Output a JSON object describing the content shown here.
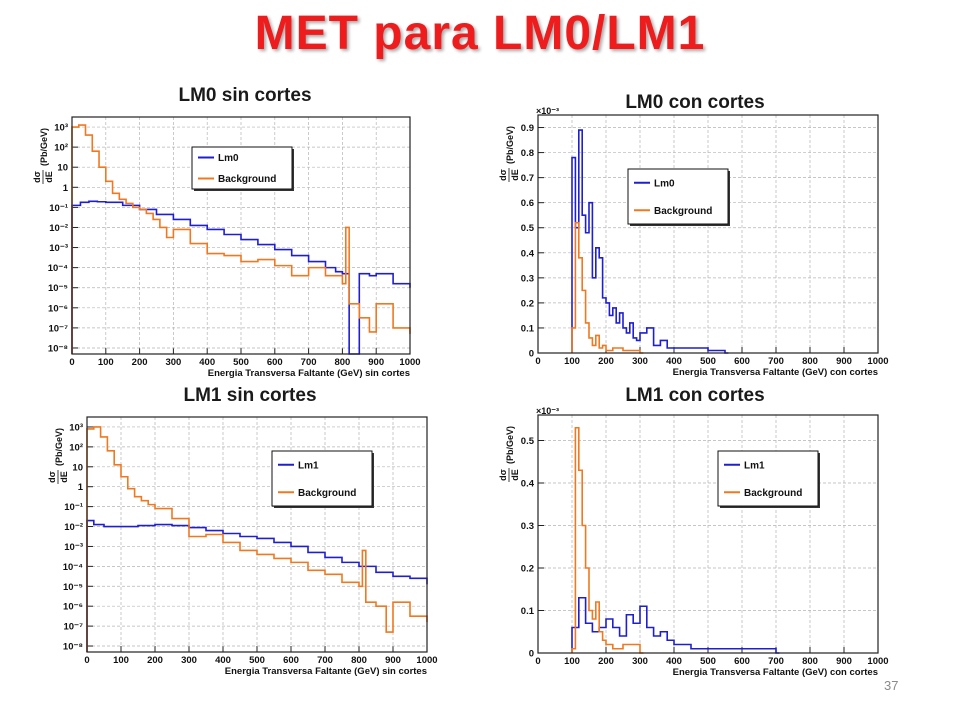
{
  "slide": {
    "title": "MET para LM0/LM1",
    "page_number": "37"
  },
  "panels": [
    {
      "caption": "LM0 sin cortes"
    },
    {
      "caption": "LM0 con cortes"
    },
    {
      "caption": "LM1 sin cortes"
    },
    {
      "caption": "LM1 con cortes"
    }
  ],
  "colors": {
    "signal": "#1f1fd0",
    "background": "#f07820",
    "grid": "#b4b4b4",
    "frame": "#222222"
  },
  "chart_data": [
    {
      "type": "line",
      "subtype": "histogram",
      "scale": "log",
      "xlabel": "Energia Transversa Faltante (GeV) sin cortes",
      "ylabel_line1": "dσ",
      "ylabel_line2": "dE",
      "ylabel_unit": "(Pb/GeV)",
      "x_ticks": [
        "0",
        "100",
        "200",
        "300",
        "400",
        "500",
        "600",
        "700",
        "800",
        "900",
        "1000"
      ],
      "y_ticks": [
        "10⁻⁸",
        "10⁻⁷",
        "10⁻⁶",
        "10⁻⁵",
        "10⁻⁴",
        "10⁻³",
        "10⁻²",
        "10⁻¹",
        "1",
        "10",
        "10²",
        "10³"
      ],
      "xlim": [
        0,
        1000
      ],
      "ylim": [
        -8.3,
        3.5
      ],
      "legend_position": "top-right",
      "grid": true,
      "series": [
        {
          "name": "Lm0",
          "role": "signal",
          "x": [
            0,
            25,
            50,
            75,
            100,
            150,
            200,
            250,
            300,
            350,
            400,
            450,
            500,
            550,
            600,
            650,
            700,
            750,
            780,
            800,
            820,
            850,
            880,
            900,
            950,
            1000
          ],
          "y_log10": [
            -0.9,
            -0.75,
            -0.7,
            -0.72,
            -0.75,
            -0.9,
            -1.1,
            -1.35,
            -1.6,
            -1.9,
            -2.1,
            -2.35,
            -2.6,
            -2.85,
            -3.1,
            -3.4,
            -3.7,
            -4.0,
            -4.2,
            -4.3,
            -8.3,
            -4.3,
            -4.4,
            -4.3,
            -4.8,
            -5.0
          ]
        },
        {
          "name": "Background",
          "role": "background",
          "x": [
            0,
            20,
            40,
            60,
            80,
            100,
            120,
            140,
            160,
            180,
            200,
            220,
            240,
            260,
            280,
            300,
            350,
            400,
            450,
            500,
            550,
            600,
            650,
            700,
            750,
            800,
            810,
            820,
            850,
            880,
            900,
            950,
            1000
          ],
          "y_log10": [
            3.0,
            3.1,
            2.6,
            1.8,
            1.0,
            0.3,
            -0.3,
            -0.6,
            -0.8,
            -1.0,
            -1.1,
            -1.3,
            -1.6,
            -2.0,
            -2.5,
            -2.1,
            -2.8,
            -3.3,
            -3.4,
            -3.7,
            -3.6,
            -3.9,
            -4.4,
            -4.0,
            -4.4,
            -4.8,
            -2.0,
            -5.8,
            -6.5,
            -7.2,
            -5.8,
            -7.0,
            -7.3
          ]
        }
      ]
    },
    {
      "type": "line",
      "subtype": "histogram",
      "scale": "linear",
      "multiplier": "×10⁻³",
      "xlabel": "Energia Transversa Faltante (GeV) con cortes",
      "ylabel_line1": "dσ",
      "ylabel_line2": "dE",
      "ylabel_unit": "(Pb/GeV)",
      "x_ticks": [
        "0",
        "100",
        "200",
        "300",
        "400",
        "500",
        "600",
        "700",
        "800",
        "900",
        "1000"
      ],
      "y_ticks": [
        "0",
        "0.1",
        "0.2",
        "0.3",
        "0.4",
        "0.5",
        "0.6",
        "0.7",
        "0.8",
        "0.9"
      ],
      "xlim": [
        0,
        1000
      ],
      "ylim": [
        0,
        0.95
      ],
      "legend_position": "top-right",
      "grid": true,
      "series": [
        {
          "name": "Lm0",
          "role": "signal",
          "x": [
            100,
            110,
            120,
            130,
            140,
            150,
            160,
            170,
            180,
            190,
            200,
            210,
            220,
            230,
            240,
            250,
            260,
            270,
            280,
            290,
            300,
            320,
            340,
            360,
            380,
            400,
            450,
            500,
            550
          ],
          "y": [
            0.78,
            0.5,
            0.89,
            0.55,
            0.48,
            0.6,
            0.3,
            0.42,
            0.38,
            0.22,
            0.2,
            0.15,
            0.18,
            0.12,
            0.16,
            0.1,
            0.08,
            0.12,
            0.06,
            0.05,
            0.08,
            0.1,
            0.03,
            0.05,
            0.02,
            0.02,
            0.02,
            0.01,
            0
          ]
        },
        {
          "name": "Background",
          "role": "background",
          "x": [
            100,
            110,
            120,
            130,
            140,
            150,
            160,
            170,
            180,
            190,
            200,
            220,
            250,
            300
          ],
          "y": [
            0.1,
            0.52,
            0.38,
            0.25,
            0.12,
            0.06,
            0.03,
            0.07,
            0.02,
            0.03,
            0.01,
            0.02,
            0.01,
            0
          ]
        }
      ]
    },
    {
      "type": "line",
      "subtype": "histogram",
      "scale": "log",
      "xlabel": "Energia Transversa Faltante (GeV) sin cortes",
      "ylabel_line1": "dσ",
      "ylabel_line2": "dE",
      "ylabel_unit": "(Pb/GeV)",
      "x_ticks": [
        "0",
        "100",
        "200",
        "300",
        "400",
        "500",
        "600",
        "700",
        "800",
        "900",
        "1000"
      ],
      "y_ticks": [
        "10⁻⁸",
        "10⁻⁷",
        "10⁻⁶",
        "10⁻⁵",
        "10⁻⁴",
        "10⁻³",
        "10⁻²",
        "10⁻¹",
        "1",
        "10",
        "10²",
        "10³"
      ],
      "xlim": [
        0,
        1000
      ],
      "ylim": [
        -8.3,
        3.5
      ],
      "legend_position": "top-right",
      "grid": true,
      "series": [
        {
          "name": "Lm1",
          "role": "signal",
          "x": [
            0,
            20,
            50,
            100,
            150,
            200,
            250,
            300,
            350,
            400,
            450,
            500,
            550,
            600,
            650,
            700,
            750,
            800,
            850,
            900,
            950,
            1000
          ],
          "y_log10": [
            -1.7,
            -1.9,
            -2.0,
            -2.0,
            -1.95,
            -1.9,
            -1.95,
            -2.05,
            -2.2,
            -2.35,
            -2.5,
            -2.6,
            -2.8,
            -3.0,
            -3.3,
            -3.55,
            -3.8,
            -4.0,
            -4.3,
            -4.5,
            -4.6,
            -4.9
          ]
        },
        {
          "name": "Background",
          "role": "background",
          "x": [
            0,
            20,
            40,
            60,
            80,
            100,
            120,
            140,
            160,
            180,
            200,
            250,
            300,
            350,
            400,
            450,
            500,
            550,
            600,
            650,
            700,
            750,
            800,
            810,
            820,
            850,
            880,
            900,
            950,
            1000
          ],
          "y_log10": [
            2.9,
            3.0,
            2.5,
            1.8,
            1.1,
            0.5,
            -0.1,
            -0.5,
            -0.7,
            -0.9,
            -1.1,
            -1.6,
            -2.5,
            -2.4,
            -2.8,
            -3.2,
            -3.4,
            -3.6,
            -3.8,
            -4.2,
            -4.4,
            -4.8,
            -5.0,
            -3.2,
            -5.8,
            -6.0,
            -7.3,
            -5.8,
            -6.5,
            -6.8
          ]
        }
      ]
    },
    {
      "type": "line",
      "subtype": "histogram",
      "scale": "linear",
      "multiplier": "×10⁻³",
      "xlabel": "Energia Transversa Faltante (GeV) con cortes",
      "ylabel_line1": "dσ",
      "ylabel_line2": "dE",
      "ylabel_unit": "(Pb/GeV)",
      "x_ticks": [
        "0",
        "100",
        "200",
        "300",
        "400",
        "500",
        "600",
        "700",
        "800",
        "900",
        "1000"
      ],
      "y_ticks": [
        "0",
        "0.1",
        "0.2",
        "0.3",
        "0.4",
        "0.5"
      ],
      "xlim": [
        0,
        1000
      ],
      "ylim": [
        0,
        0.56
      ],
      "legend_position": "top-right",
      "grid": true,
      "series": [
        {
          "name": "Lm1",
          "role": "signal",
          "x": [
            100,
            120,
            140,
            160,
            180,
            200,
            220,
            240,
            260,
            280,
            300,
            320,
            340,
            360,
            380,
            400,
            450,
            500,
            550,
            600,
            650,
            700
          ],
          "y": [
            0.06,
            0.13,
            0.07,
            0.05,
            0.06,
            0.08,
            0.06,
            0.04,
            0.09,
            0.07,
            0.11,
            0.06,
            0.04,
            0.05,
            0.03,
            0.02,
            0.01,
            0.01,
            0.01,
            0.01,
            0.01,
            0
          ]
        },
        {
          "name": "Background",
          "role": "background",
          "x": [
            100,
            110,
            120,
            130,
            140,
            150,
            160,
            170,
            180,
            190,
            200,
            220,
            250,
            300
          ],
          "y": [
            0.01,
            0.53,
            0.43,
            0.3,
            0.2,
            0.1,
            0.08,
            0.12,
            0.05,
            0.03,
            0.02,
            0.01,
            0.02,
            0
          ]
        }
      ]
    }
  ]
}
